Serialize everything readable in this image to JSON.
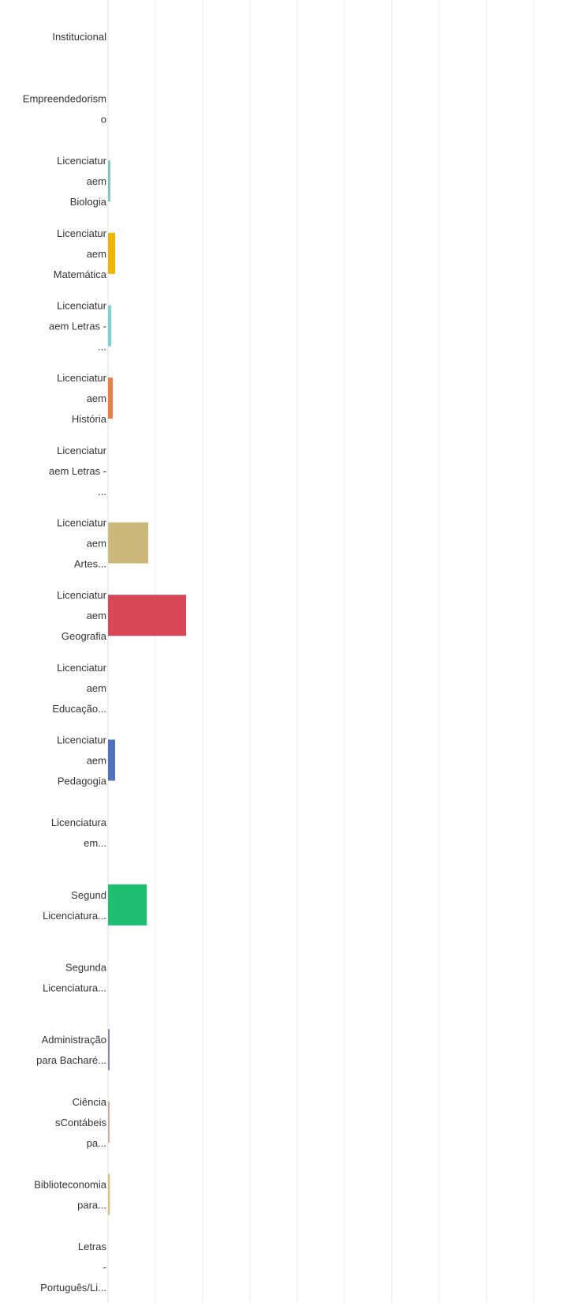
{
  "chart_data": {
    "type": "bar",
    "orientation": "horizontal",
    "title": "",
    "xlabel": "",
    "ylabel": "",
    "grid": true,
    "xlim": [
      0,
      10
    ],
    "categories": [
      {
        "label": "Institucional",
        "lines": [
          "Institucional"
        ],
        "value": 0,
        "color": "#cccccc"
      },
      {
        "label": "Empreendedorismo",
        "lines": [
          "Empreendedorism",
          "o"
        ],
        "value": 0,
        "color": "#cccccc"
      },
      {
        "label": "Licenciatura em Biologia",
        "lines": [
          "Licenciatur",
          "aem",
          "Biologia"
        ],
        "value": 0.05,
        "color": "#82c9c1"
      },
      {
        "label": "Licenciatura em Matemática",
        "lines": [
          "Licenciatur",
          "aem",
          "Matemática"
        ],
        "value": 0.15,
        "color": "#f1b400"
      },
      {
        "label": "Licenciatura em Letras - ...",
        "lines": [
          "Licenciatur",
          "aem Letras -",
          "..."
        ],
        "value": 0.07,
        "color": "#80d0d6"
      },
      {
        "label": "Licenciatura em História",
        "lines": [
          "Licenciatur",
          "aem",
          "História"
        ],
        "value": 0.1,
        "color": "#ee7f40"
      },
      {
        "label": "Licenciatura em Letras - ...",
        "lines": [
          "Licenciatur",
          "aem Letras -",
          "..."
        ],
        "value": 0,
        "color": "#cccccc"
      },
      {
        "label": "Licenciatura em Artes...",
        "lines": [
          "Licenciatur",
          "aem",
          "Artes..."
        ],
        "value": 0.85,
        "color": "#cbb87a"
      },
      {
        "label": "Licenciatura em Geografia",
        "lines": [
          "Licenciatur",
          "aem",
          "Geografia"
        ],
        "value": 1.65,
        "color": "#d94656"
      },
      {
        "label": "Licenciatura em Educação...",
        "lines": [
          "Licenciatur",
          "aem",
          "Educação..."
        ],
        "value": 0,
        "color": "#cccccc"
      },
      {
        "label": "Licenciatura em Pedagogia",
        "lines": [
          "Licenciatur",
          "aem",
          "Pedagogia"
        ],
        "value": 0.15,
        "color": "#4f70bd"
      },
      {
        "label": "Licenciatura em...",
        "lines": [
          "Licenciatura",
          "em..."
        ],
        "value": 0,
        "color": "#cccccc"
      },
      {
        "label": "Segunda Licenciatura...",
        "lines": [
          "Segund",
          "Licenciatura..."
        ],
        "value": 0.82,
        "color": "#1fbf73"
      },
      {
        "label": "Segunda Licenciatura...",
        "lines": [
          "Segunda",
          "Licenciatura..."
        ],
        "value": 0,
        "color": "#cccccc"
      },
      {
        "label": "Administração para Bacharé...",
        "lines": [
          "Administração",
          "para Bacharé..."
        ],
        "value": 0.02,
        "color": "#8d7fb5"
      },
      {
        "label": "Ciências Contábeis pa...",
        "lines": [
          "Ciência",
          "sContábeis",
          "pa..."
        ],
        "value": 0.02,
        "color": "#d9a6a0"
      },
      {
        "label": "Biblioteconomia para...",
        "lines": [
          "Biblioteconomia",
          "para..."
        ],
        "value": 0.04,
        "color": "#d8c778"
      },
      {
        "label": "Letras - Português/Li...",
        "lines": [
          "Letras",
          "-",
          "Português/Li..."
        ],
        "value": 0,
        "color": "#cccccc"
      }
    ]
  }
}
